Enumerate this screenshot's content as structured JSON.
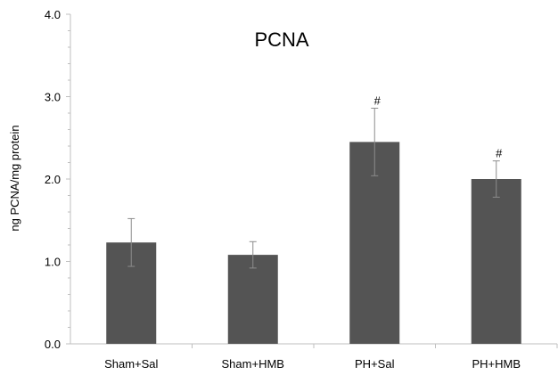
{
  "chart_data": {
    "type": "bar",
    "title": "PCNA",
    "xlabel": "",
    "ylabel": "ng PCNA/mg protein",
    "ylim": [
      0,
      4
    ],
    "yticks": [
      "0.0",
      "1.0",
      "2.0",
      "3.0",
      "4.0"
    ],
    "categories": [
      "Sham+Sal",
      "Sham+HMB",
      "PH+Sal",
      "PH+HMB"
    ],
    "values": [
      1.23,
      1.08,
      2.45,
      2.0
    ],
    "errors": [
      0.29,
      0.16,
      0.41,
      0.22
    ],
    "annotations": [
      "",
      "",
      "#",
      "#"
    ],
    "bar_color": "#545454",
    "grid": false,
    "legend": "none"
  }
}
